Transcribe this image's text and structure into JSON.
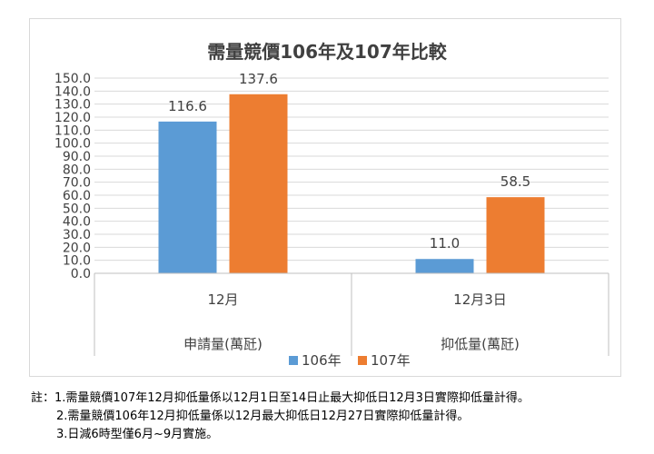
{
  "chart_data": {
    "type": "bar",
    "title": "需量競價106年及107年比較",
    "categories": [
      {
        "top": "12月",
        "bottom": "申請量(萬瓩)"
      },
      {
        "top": "12月3日",
        "bottom": "抑低量(萬瓩)"
      }
    ],
    "series": [
      {
        "name": "106年",
        "color": "#5b9bd5",
        "values": [
          116.6,
          11.0
        ],
        "labels": [
          "116.6",
          "11.0"
        ]
      },
      {
        "name": "107年",
        "color": "#ed7d31",
        "values": [
          137.6,
          58.5
        ],
        "labels": [
          "137.6",
          "58.5"
        ]
      }
    ],
    "ylim": [
      0,
      150
    ],
    "ytick_step": 10,
    "ytick_labels": [
      "0.0",
      "10.0",
      "20.0",
      "30.0",
      "40.0",
      "50.0",
      "60.0",
      "70.0",
      "80.0",
      "90.0",
      "100.0",
      "110.0",
      "120.0",
      "130.0",
      "140.0",
      "150.0"
    ],
    "grid": true,
    "legend": "bottom"
  },
  "notes": {
    "line1": "註：1.需量競價107年12月抑低量係以12月1日至14日止最大抑低日12月3日實際抑低量計得。",
    "line2": "2.需量競價106年12月抑低量係以12月最大抑低日12月27日實際抑低量計得。",
    "line3": "3.日減6時型僅6月~9月實施。"
  }
}
